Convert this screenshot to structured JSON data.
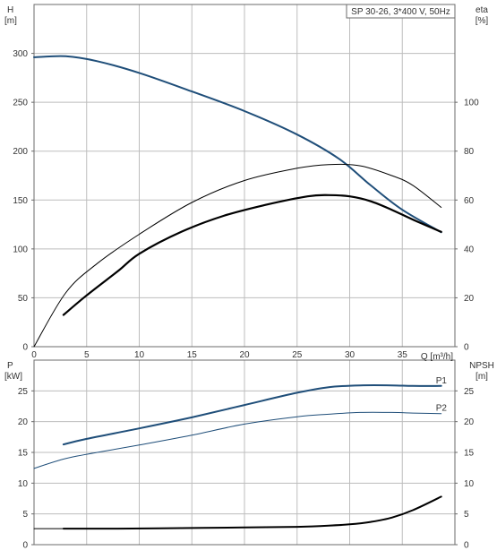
{
  "chart_data": [
    {
      "type": "line",
      "title": "SP 30-26, 3*400 V, 50Hz",
      "xlabel": "Q [m³/h]",
      "xlim": [
        0,
        40
      ],
      "x_ticks": [
        "0",
        "5",
        "10",
        "15",
        "20",
        "25",
        "30",
        "35"
      ],
      "y_left": {
        "label_top": "H",
        "label_unit": "[m]",
        "lim": [
          0,
          350
        ],
        "ticks": [
          "0",
          "50",
          "100",
          "150",
          "200",
          "250",
          "300"
        ]
      },
      "y_right": {
        "label_top": "eta",
        "label_unit": "[%]",
        "lim": [
          0,
          140
        ],
        "ticks": [
          "0",
          "20",
          "40",
          "60",
          "80",
          "100"
        ]
      },
      "grid": true,
      "series": [
        {
          "axis": "left",
          "color": "#1f4e79",
          "width": 2,
          "x": [
            0,
            3,
            6,
            10,
            15,
            20,
            25,
            29,
            32,
            35,
            38.7
          ],
          "y": [
            296,
            297,
            292,
            280,
            261,
            241,
            217,
            192,
            165,
            140,
            117
          ]
        },
        {
          "axis": "right",
          "color": "#000000",
          "width": 1,
          "x": [
            0,
            3,
            6,
            10,
            15,
            20,
            25,
            28,
            31,
            34,
            36,
            38.7
          ],
          "y": [
            0,
            22,
            34,
            46,
            59,
            68,
            73,
            74.5,
            74,
            70,
            66,
            57
          ]
        },
        {
          "axis": "right",
          "color": "#000000",
          "width": 2.2,
          "x": [
            2.8,
            5,
            8,
            10,
            14,
            18,
            22,
            26,
            28,
            30,
            32,
            34,
            36,
            38.7
          ],
          "y": [
            13,
            21,
            31,
            38,
            47,
            53.5,
            58,
            61.5,
            62,
            61.5,
            59.5,
            56,
            52,
            47
          ]
        }
      ]
    },
    {
      "type": "line",
      "xlim": [
        0,
        40
      ],
      "x_ticks": [],
      "y_left": {
        "label_top": "P",
        "label_unit": "[kW]",
        "lim": [
          0,
          30
        ],
        "ticks": [
          "0",
          "5",
          "10",
          "15",
          "20",
          "25"
        ]
      },
      "y_right": {
        "label_top": "NPSH",
        "label_unit": "[m]",
        "lim": [
          0,
          30
        ],
        "ticks": [
          "0",
          "5",
          "10",
          "15",
          "20",
          "25"
        ]
      },
      "grid": true,
      "series": [
        {
          "name": "P1",
          "axis": "left",
          "color": "#1f4e79",
          "width": 2,
          "x": [
            2.8,
            5,
            10,
            15,
            20,
            25,
            28,
            31,
            34,
            36,
            38.7
          ],
          "y": [
            16.3,
            17.2,
            18.9,
            20.7,
            22.7,
            24.7,
            25.6,
            25.9,
            25.9,
            25.8,
            25.8
          ]
        },
        {
          "name": "P2",
          "axis": "left",
          "color": "#1f4e79",
          "width": 1,
          "x": [
            0,
            3,
            6,
            10,
            15,
            20,
            25,
            28,
            31,
            34,
            36,
            38.7
          ],
          "y": [
            12.4,
            14.0,
            15.0,
            16.2,
            17.8,
            19.6,
            20.8,
            21.2,
            21.5,
            21.5,
            21.4,
            21.3
          ]
        },
        {
          "axis": "right",
          "color": "#000000",
          "width": 2,
          "x": [
            2.8,
            8,
            14,
            20,
            25,
            28,
            30,
            32,
            34,
            36,
            38.7
          ],
          "y": [
            2.6,
            2.6,
            2.7,
            2.8,
            2.9,
            3.1,
            3.3,
            3.7,
            4.4,
            5.6,
            7.8
          ]
        },
        {
          "axis": "left",
          "color": "#000000",
          "width": 1,
          "x": [
            0,
            2.8
          ],
          "y": [
            2.6,
            2.6
          ]
        }
      ]
    }
  ]
}
